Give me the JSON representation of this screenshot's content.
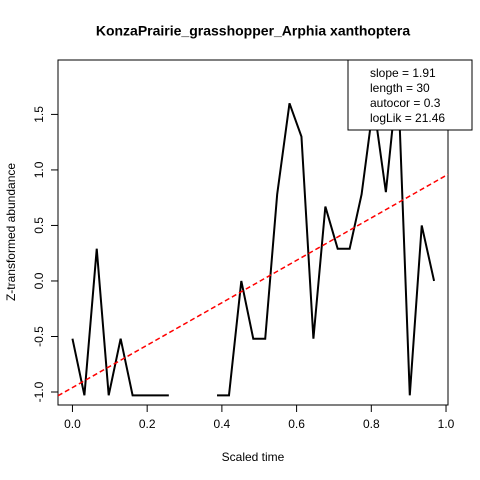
{
  "chart_data": {
    "type": "line",
    "title": "KonzaPrairie_grasshopper_Arphia xanthoptera",
    "xlabel": "Scaled time",
    "ylabel": "Z-transformed abundance",
    "x": [
      0,
      0.032,
      0.065,
      0.097,
      0.129,
      0.161,
      0.194,
      0.226,
      0.258,
      0.29,
      0.323,
      0.355,
      0.387,
      0.419,
      0.452,
      0.484,
      0.516,
      0.548,
      0.581,
      0.613,
      0.645,
      0.677,
      0.71,
      0.742,
      0.774,
      0.806,
      0.839,
      0.871,
      0.903,
      0.935,
      0.968
    ],
    "series": [
      {
        "name": "abundance",
        "color": "#000000",
        "values": [
          -0.52,
          -1.03,
          0.29,
          -1.03,
          -0.52,
          -1.03,
          -1.03,
          -1.03,
          -1.03,
          null,
          null,
          null,
          -1.03,
          -1.03,
          0.0,
          -0.52,
          -0.52,
          0.78,
          1.6,
          1.3,
          -0.52,
          0.67,
          0.29,
          0.29,
          0.78,
          1.6,
          0.8,
          1.85,
          -1.03,
          0.5,
          0.0
        ]
      }
    ],
    "trend": {
      "color": "#ff0000",
      "x": [
        -0.0387,
        1.0053
      ],
      "values": [
        -1.034,
        0.96
      ]
    },
    "annotations": [
      "slope = 1.91",
      "length = 30",
      "autocor = 0.3",
      "logLik = 21.46"
    ],
    "xlim": [
      -0.0387,
      1.0053
    ],
    "ylim": [
      -1.117,
      1.99
    ],
    "xticks": [
      {
        "value": 0,
        "label": "0.0"
      },
      0.2,
      0.4,
      0.6,
      0.8,
      {
        "value": 1,
        "label": "1.0"
      }
    ],
    "yticks": [
      {
        "value": -1,
        "label": "-1.0"
      },
      -0.5,
      {
        "value": 0,
        "label": "0.0"
      },
      0.5,
      {
        "value": 1,
        "label": "1.0"
      },
      1.5
    ]
  }
}
